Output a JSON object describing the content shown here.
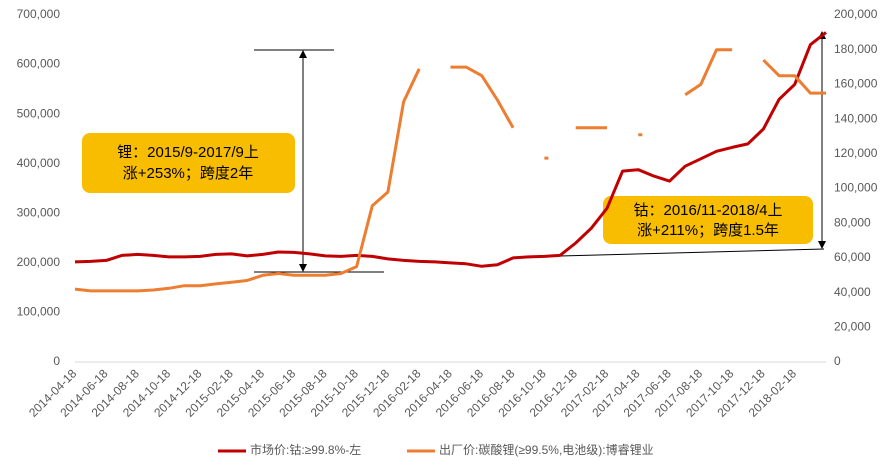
{
  "chart_data": {
    "type": "line",
    "categories": [
      "2014-04-18",
      null,
      "2014-06-18",
      null,
      "2014-08-18",
      null,
      "2014-10-18",
      null,
      "2014-12-18",
      null,
      "2015-02-18",
      null,
      "2015-04-18",
      null,
      "2015-06-18",
      null,
      "2015-08-18",
      null,
      "2015-10-18",
      null,
      "2015-12-18",
      null,
      "2016-02-18",
      null,
      "2016-04-18",
      null,
      "2016-06-18",
      null,
      "2016-08-18",
      null,
      "2016-10-18",
      null,
      "2016-12-18",
      null,
      "2017-02-18",
      null,
      "2017-04-18",
      null,
      "2017-06-18",
      null,
      "2017-08-18",
      null,
      "2017-10-18",
      null,
      "2017-12-18",
      null,
      "2018-02-18",
      null,
      null
    ],
    "series": [
      {
        "name": "市场价:钴:≥99.8%-左",
        "color": "#c00000",
        "values": [
          202000,
          203000,
          205000,
          215000,
          217000,
          215000,
          212000,
          212000,
          213000,
          217000,
          218000,
          214000,
          217000,
          222000,
          221000,
          218000,
          214000,
          213000,
          215000,
          213000,
          208000,
          205000,
          203000,
          202000,
          200000,
          198000,
          193000,
          196000,
          210000,
          212000,
          213000,
          215000,
          240000,
          270000,
          310000,
          385000,
          388000,
          375000,
          365000,
          395000,
          410000,
          425000,
          433000,
          440000,
          470000,
          530000,
          560000,
          640000,
          665000
        ]
      },
      {
        "name": "出厂价:碳酸锂(≥99.5%,电池级):博睿锂业",
        "color": "#ed7d31",
        "axis": "y2",
        "values": [
          42000,
          41000,
          41000,
          41000,
          41000,
          41500,
          42500,
          44000,
          44000,
          45000,
          46000,
          47000,
          50000,
          51000,
          50000,
          50000,
          50000,
          51000,
          55000,
          90000,
          98000,
          150000,
          169000,
          null,
          170000,
          170000,
          165000,
          151000,
          135000,
          null,
          117500,
          null,
          135000,
          135000,
          135000,
          null,
          131000,
          null,
          null,
          154000,
          160000,
          180000,
          180000,
          null,
          174000,
          165000,
          165000,
          155000,
          155000
        ]
      }
    ],
    "ylim": [
      0,
      700000
    ],
    "yticks": [
      0,
      {
        "value": 100000,
        "label": "100,000"
      },
      {
        "value": 200000,
        "label": "200,000"
      },
      {
        "value": 300000,
        "label": "300,000"
      },
      {
        "value": 400000,
        "label": "400,000"
      },
      {
        "value": 500000,
        "label": "500,000"
      },
      {
        "value": 600000,
        "label": "600,000"
      },
      {
        "value": 700000,
        "label": "700,000"
      }
    ],
    "y2lim": [
      0,
      200000
    ],
    "y2ticks": [
      0,
      {
        "value": 20000,
        "label": "20,000"
      },
      {
        "value": 40000,
        "label": "40,000"
      },
      {
        "value": 60000,
        "label": "60,000"
      },
      {
        "value": 80000,
        "label": "80,000"
      },
      {
        "value": 100000,
        "label": "100,000"
      },
      {
        "value": 120000,
        "label": "120,000"
      },
      {
        "value": 140000,
        "label": "140,000"
      },
      {
        "value": 160000,
        "label": "160,000"
      },
      {
        "value": 180000,
        "label": "180,000"
      },
      {
        "value": 200000,
        "label": "200,000"
      }
    ],
    "annotations": [
      [
        "锂：2015/9-2017/9上",
        "涨+253%；跨度2年"
      ],
      [
        "钴：2016/11-2018/4上",
        "涨+211%；跨度1.5年"
      ]
    ]
  }
}
